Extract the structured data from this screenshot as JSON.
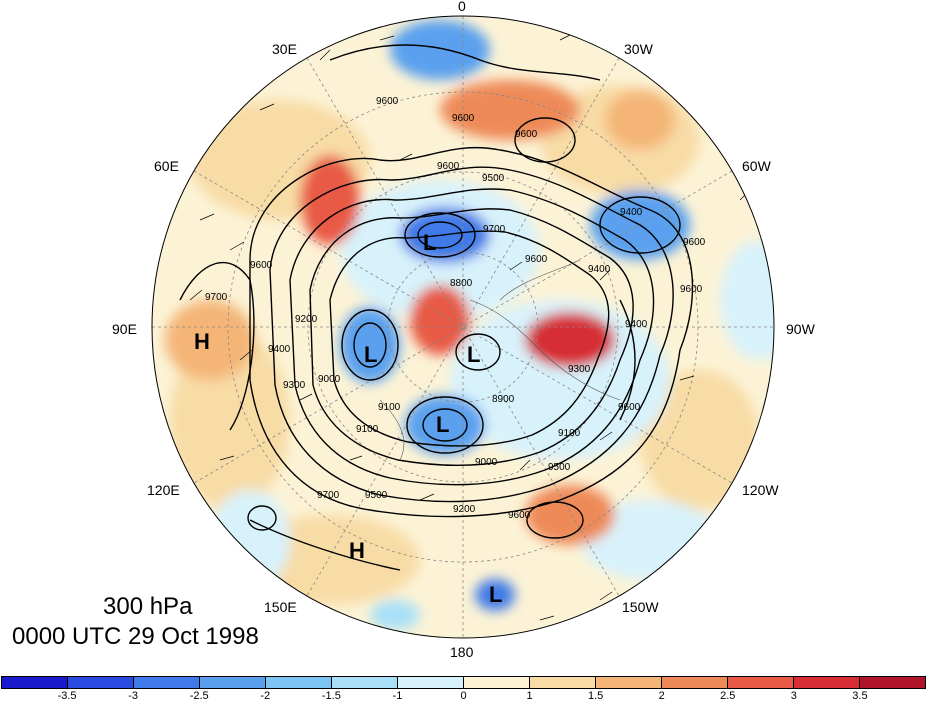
{
  "map": {
    "projection": "north-polar-stereographic",
    "level_text": "300 hPa",
    "time_text": "0000 UTC 29 Oct 1998",
    "longitude_labels": [
      {
        "id": "lon-0",
        "text": "0"
      },
      {
        "id": "lon-30w",
        "text": "30W"
      },
      {
        "id": "lon-60w",
        "text": "60W"
      },
      {
        "id": "lon-90w",
        "text": "90W"
      },
      {
        "id": "lon-120w",
        "text": "120W"
      },
      {
        "id": "lon-150w",
        "text": "150W"
      },
      {
        "id": "lon-180",
        "text": "180"
      },
      {
        "id": "lon-150e",
        "text": "150E"
      },
      {
        "id": "lon-120e",
        "text": "120E"
      },
      {
        "id": "lon-90e",
        "text": "90E"
      },
      {
        "id": "lon-60e",
        "text": "60E"
      },
      {
        "id": "lon-30e",
        "text": "30E"
      }
    ],
    "contour_labels": [
      "9600",
      "9600",
      "9600",
      "9600",
      "9500",
      "9400",
      "9600",
      "9700",
      "8800",
      "9600",
      "9400",
      "9600",
      "9400",
      "9300",
      "9400",
      "9200",
      "9300",
      "9000",
      "9100",
      "9100",
      "8900",
      "9000",
      "9100",
      "9200",
      "9500",
      "9500",
      "9600",
      "9700",
      "9700",
      "9600",
      "9600"
    ],
    "pressure_centers": [
      {
        "text": "H",
        "region": "90E"
      },
      {
        "text": "L",
        "region": "near 60E high latitude"
      },
      {
        "text": "L",
        "region": "near 90E-120E mid"
      },
      {
        "text": "L",
        "region": "pole"
      },
      {
        "text": "L",
        "region": "near 150E"
      },
      {
        "text": "H",
        "region": "150E-180"
      },
      {
        "text": "L",
        "region": "near 180"
      }
    ]
  },
  "colorbar": {
    "colors": [
      "#1a1acd",
      "#2a4be0",
      "#3f7ae8",
      "#5aa0ee",
      "#7cc4f2",
      "#a9e0f8",
      "#d8f2fb",
      "#fcf3d6",
      "#f8dca6",
      "#f4b577",
      "#ee8a58",
      "#e85a45",
      "#d62e34",
      "#b0142a"
    ],
    "ticks": [
      "-3.5",
      "-3",
      "-2.5",
      "-2",
      "-1.5",
      "-1",
      "0",
      "1",
      "1.5",
      "2",
      "2.5",
      "3",
      "3.5"
    ]
  }
}
